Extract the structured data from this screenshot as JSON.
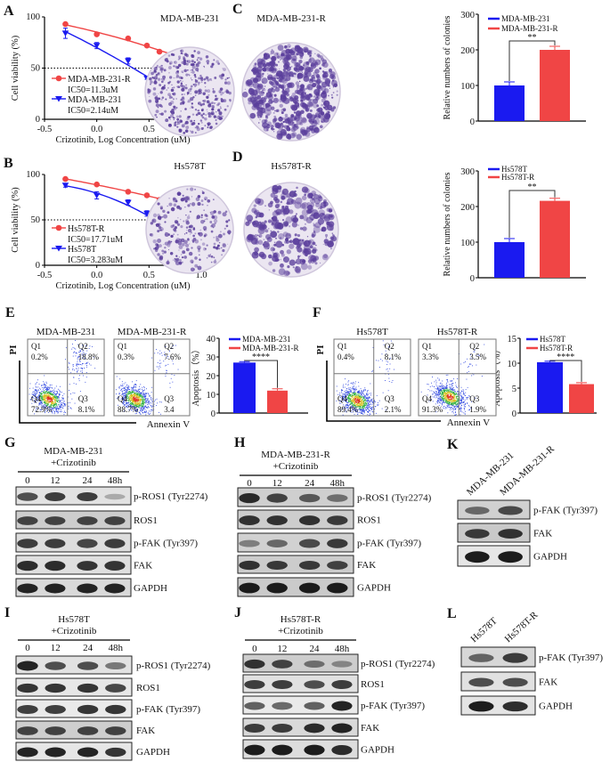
{
  "colors": {
    "red": "#f04545",
    "blue": "#1a1af0",
    "colony": "#5b3f9c"
  },
  "chart_data": [
    {
      "panel": "A",
      "type": "line",
      "xlabel": "Crizotinib, Log Concentration (uM)",
      "ylabel": "Cell viability (%)",
      "xlim": [
        -0.5,
        1.0
      ],
      "ylim": [
        0,
        100
      ],
      "xticks": [
        "-0.5",
        "0.0",
        "0.5",
        "1.0"
      ],
      "yticks": [
        "0",
        "50",
        "100"
      ],
      "reference_line": 50,
      "series": [
        {
          "name": "MDA-MB-231-R",
          "ic50": "IC50=11.3uM",
          "color": "#f04545",
          "marker": "circle",
          "x": [
            -0.3,
            0.0,
            0.3,
            0.48,
            0.6,
            0.78,
            0.9
          ],
          "y": [
            93,
            83,
            79,
            72,
            66,
            61,
            57
          ],
          "err": [
            1,
            1,
            1,
            1,
            1,
            1,
            1
          ]
        },
        {
          "name": "MDA-MB-231",
          "ic50": "IC50=2.14uM",
          "color": "#1a1af0",
          "marker": "triangle-down",
          "x": [
            -0.3,
            0.0,
            0.3,
            0.48,
            0.6,
            0.78,
            0.9
          ],
          "y": [
            84,
            72,
            57,
            40,
            29,
            22,
            17
          ],
          "err": [
            5,
            3,
            3,
            1,
            2,
            2,
            1
          ]
        }
      ]
    },
    {
      "panel": "B",
      "type": "line",
      "xlabel": "Crizotinib, Log Concentration (uM)",
      "ylabel": "Cell viability (%)",
      "xlim": [
        -0.5,
        1.0
      ],
      "ylim": [
        0,
        100
      ],
      "xticks": [
        "-0.5",
        "0.0",
        "0.5",
        "1.0"
      ],
      "yticks": [
        "0",
        "50",
        "100"
      ],
      "reference_line": 50,
      "series": [
        {
          "name": "Hs578T-R",
          "ic50": "IC50=17.71uM",
          "color": "#f04545",
          "marker": "circle",
          "x": [
            -0.3,
            0.0,
            0.3,
            0.48,
            0.6,
            0.78,
            0.9
          ],
          "y": [
            95,
            89,
            81,
            77,
            72,
            70,
            64
          ],
          "err": [
            1,
            1,
            1,
            1,
            1,
            1,
            1
          ]
        },
        {
          "name": "Hs578T",
          "ic50": "IC50=3.283uM",
          "color": "#1a1af0",
          "marker": "triangle-down",
          "x": [
            -0.3,
            0.0,
            0.3,
            0.48,
            0.6,
            0.78,
            0.9
          ],
          "y": [
            88,
            77,
            69,
            57,
            44,
            31,
            25
          ],
          "err": [
            2,
            4,
            3,
            3,
            4,
            4,
            1
          ]
        }
      ]
    },
    {
      "panel": "C",
      "type": "bar",
      "ylabel": "Relative numbers of colonies",
      "ylim": [
        0,
        300
      ],
      "yticks": [
        "0",
        "100",
        "200",
        "300"
      ],
      "series": [
        {
          "name": "MDA-MB-231",
          "value": 100,
          "err": 10,
          "color": "#1a1af0"
        },
        {
          "name": "MDA-MB-231-R",
          "value": 200,
          "err": 10,
          "color": "#f04545"
        }
      ],
      "significance": "**"
    },
    {
      "panel": "D",
      "type": "bar",
      "ylabel": "Relative numbers of colonies",
      "ylim": [
        0,
        300
      ],
      "yticks": [
        "0",
        "100",
        "200",
        "300"
      ],
      "series": [
        {
          "name": "Hs578T",
          "value": 100,
          "err": 10,
          "color": "#1a1af0"
        },
        {
          "name": "Hs578T-R",
          "value": 216,
          "err": 7,
          "color": "#f04545"
        }
      ],
      "significance": "**"
    },
    {
      "panel": "E",
      "type": "bar",
      "ylabel": "Apoptosis（%）",
      "ylim": [
        0,
        40
      ],
      "yticks": [
        "0",
        "10",
        "20",
        "30",
        "40"
      ],
      "series": [
        {
          "name": "MDA-MB-231",
          "value": 27,
          "err": 0.5,
          "color": "#1a1af0"
        },
        {
          "name": "MDA-MB-231-R",
          "value": 12,
          "err": 1,
          "color": "#f04545"
        }
      ],
      "significance": "****"
    },
    {
      "panel": "F",
      "type": "bar",
      "ylabel": "Apoptosis（%）",
      "ylim": [
        0,
        15
      ],
      "yticks": [
        "0",
        "5",
        "10",
        "15"
      ],
      "series": [
        {
          "name": "Hs578T",
          "value": 10.2,
          "err": 0.2,
          "color": "#1a1af0"
        },
        {
          "name": "Hs578T-R",
          "value": 5.8,
          "err": 0.3,
          "color": "#f04545"
        }
      ],
      "significance": "****"
    }
  ],
  "colony_panels": {
    "C": {
      "plates": [
        "MDA-MB-231",
        "MDA-MB-231-R"
      ]
    },
    "D": {
      "plates": [
        "Hs578T",
        "Hs578T-R"
      ]
    }
  },
  "flow_panels": {
    "E": {
      "yaxis": "PI",
      "xaxis": "Annexin V",
      "plots": [
        {
          "title": "MDA-MB-231",
          "q1": [
            "Q1",
            "0.2%"
          ],
          "q2": [
            "Q2",
            "18.8%"
          ],
          "q3": [
            "Q3",
            "8.1%"
          ],
          "q4": [
            "Q4",
            "72.9%"
          ]
        },
        {
          "title": "MDA-MB-231-R",
          "q1": [
            "Q1",
            "0.3%"
          ],
          "q2": [
            "Q2",
            "7.6%"
          ],
          "q3": [
            "Q3",
            "3.4"
          ],
          "q4": [
            "Q4",
            "88.7%"
          ]
        }
      ]
    },
    "F": {
      "yaxis": "PI",
      "xaxis": "Annexin V",
      "plots": [
        {
          "title": "Hs578T",
          "q1": [
            "Q1",
            "0.4%"
          ],
          "q2": [
            "Q2",
            "8.1%"
          ],
          "q3": [
            "Q3",
            "2.1%"
          ],
          "q4": [
            "Q4",
            "89.4%"
          ]
        },
        {
          "title": "Hs578T-R",
          "q1": [
            "Q1",
            "3.3%"
          ],
          "q2": [
            "Q2",
            "3.5%"
          ],
          "q3": [
            "Q3",
            "1.9%"
          ],
          "q4": [
            "Q4",
            "91.3%"
          ]
        }
      ]
    }
  },
  "blots": {
    "G": {
      "title": [
        "MDA-MB-231",
        "+Crizotinib"
      ],
      "lanes": [
        "0",
        "12",
        "24",
        "48h"
      ],
      "rows": [
        {
          "label": "p-ROS1 (Tyr2274)",
          "bands": [
            0.7,
            0.8,
            0.8,
            0.15
          ]
        },
        {
          "label": "ROS1",
          "bands": [
            0.75,
            0.75,
            0.75,
            0.75
          ]
        },
        {
          "label": "p-FAK (Tyr397)",
          "bands": [
            0.8,
            0.8,
            0.75,
            0.8
          ]
        },
        {
          "label": "FAK",
          "bands": [
            0.9,
            0.9,
            0.85,
            0.85
          ]
        },
        {
          "label": "GAPDH",
          "bands": [
            0.95,
            0.95,
            0.95,
            0.95
          ]
        }
      ]
    },
    "H": {
      "title": [
        "MDA-MB-231-R",
        "+Crizotinib"
      ],
      "lanes": [
        "0",
        "12",
        "24",
        "48h"
      ],
      "rows": [
        {
          "label": "p-ROS1 (Tyr2274)",
          "bands": [
            0.9,
            0.75,
            0.6,
            0.45
          ]
        },
        {
          "label": "ROS1",
          "bands": [
            0.85,
            0.85,
            0.85,
            0.8
          ]
        },
        {
          "label": "p-FAK (Tyr397)",
          "bands": [
            0.35,
            0.5,
            0.7,
            0.8
          ]
        },
        {
          "label": "FAK",
          "bands": [
            0.85,
            0.8,
            0.8,
            0.75
          ]
        },
        {
          "label": "GAPDH",
          "bands": [
            1,
            1,
            1,
            1
          ]
        }
      ]
    },
    "I": {
      "title": [
        "Hs578T",
        "+Crizotinib"
      ],
      "lanes": [
        "0",
        "12",
        "24",
        "48h"
      ],
      "rows": [
        {
          "label": "p-ROS1 (Tyr2274)",
          "bands": [
            0.95,
            0.7,
            0.7,
            0.45
          ]
        },
        {
          "label": "ROS1",
          "bands": [
            0.85,
            0.85,
            0.85,
            0.75
          ]
        },
        {
          "label": "p-FAK (Tyr397)",
          "bands": [
            0.8,
            0.8,
            0.85,
            0.85
          ]
        },
        {
          "label": "FAK",
          "bands": [
            0.75,
            0.75,
            0.75,
            0.75
          ]
        },
        {
          "label": "GAPDH",
          "bands": [
            0.95,
            0.95,
            0.95,
            0.85
          ]
        }
      ]
    },
    "J": {
      "title": [
        "Hs578T-R",
        "+Crizotinib"
      ],
      "lanes": [
        "0",
        "12",
        "24",
        "48h"
      ],
      "rows": [
        {
          "label": "p-ROS1 (Tyr2274)",
          "bands": [
            0.85,
            0.75,
            0.45,
            0.3
          ]
        },
        {
          "label": "ROS1",
          "bands": [
            0.8,
            0.8,
            0.7,
            0.8
          ]
        },
        {
          "label": "p-FAK (Tyr397)",
          "bands": [
            0.6,
            0.55,
            0.6,
            0.95
          ]
        },
        {
          "label": "FAK",
          "bands": [
            0.8,
            0.8,
            0.9,
            0.95
          ]
        },
        {
          "label": "GAPDH",
          "bands": [
            1,
            1,
            1,
            0.9
          ]
        }
      ]
    },
    "K": {
      "lanes": [
        "MDA-MB-231",
        "MDA-MB-231-R"
      ],
      "rows": [
        {
          "label": "p-FAK (Tyr397)",
          "bands": [
            0.5,
            0.7
          ]
        },
        {
          "label": "FAK",
          "bands": [
            0.8,
            0.85
          ]
        },
        {
          "label": "GAPDH",
          "bands": [
            1,
            1
          ]
        }
      ]
    },
    "L": {
      "lanes": [
        "Hs578T",
        "Hs578T-R"
      ],
      "rows": [
        {
          "label": "p-FAK (Tyr397)",
          "bands": [
            0.55,
            0.8
          ]
        },
        {
          "label": "FAK",
          "bands": [
            0.7,
            0.7
          ]
        },
        {
          "label": "GAPDH",
          "bands": [
            1,
            0.9
          ]
        }
      ]
    }
  },
  "panel_letters": [
    "A",
    "B",
    "C",
    "D",
    "E",
    "F",
    "G",
    "H",
    "I",
    "J",
    "K",
    "L"
  ]
}
